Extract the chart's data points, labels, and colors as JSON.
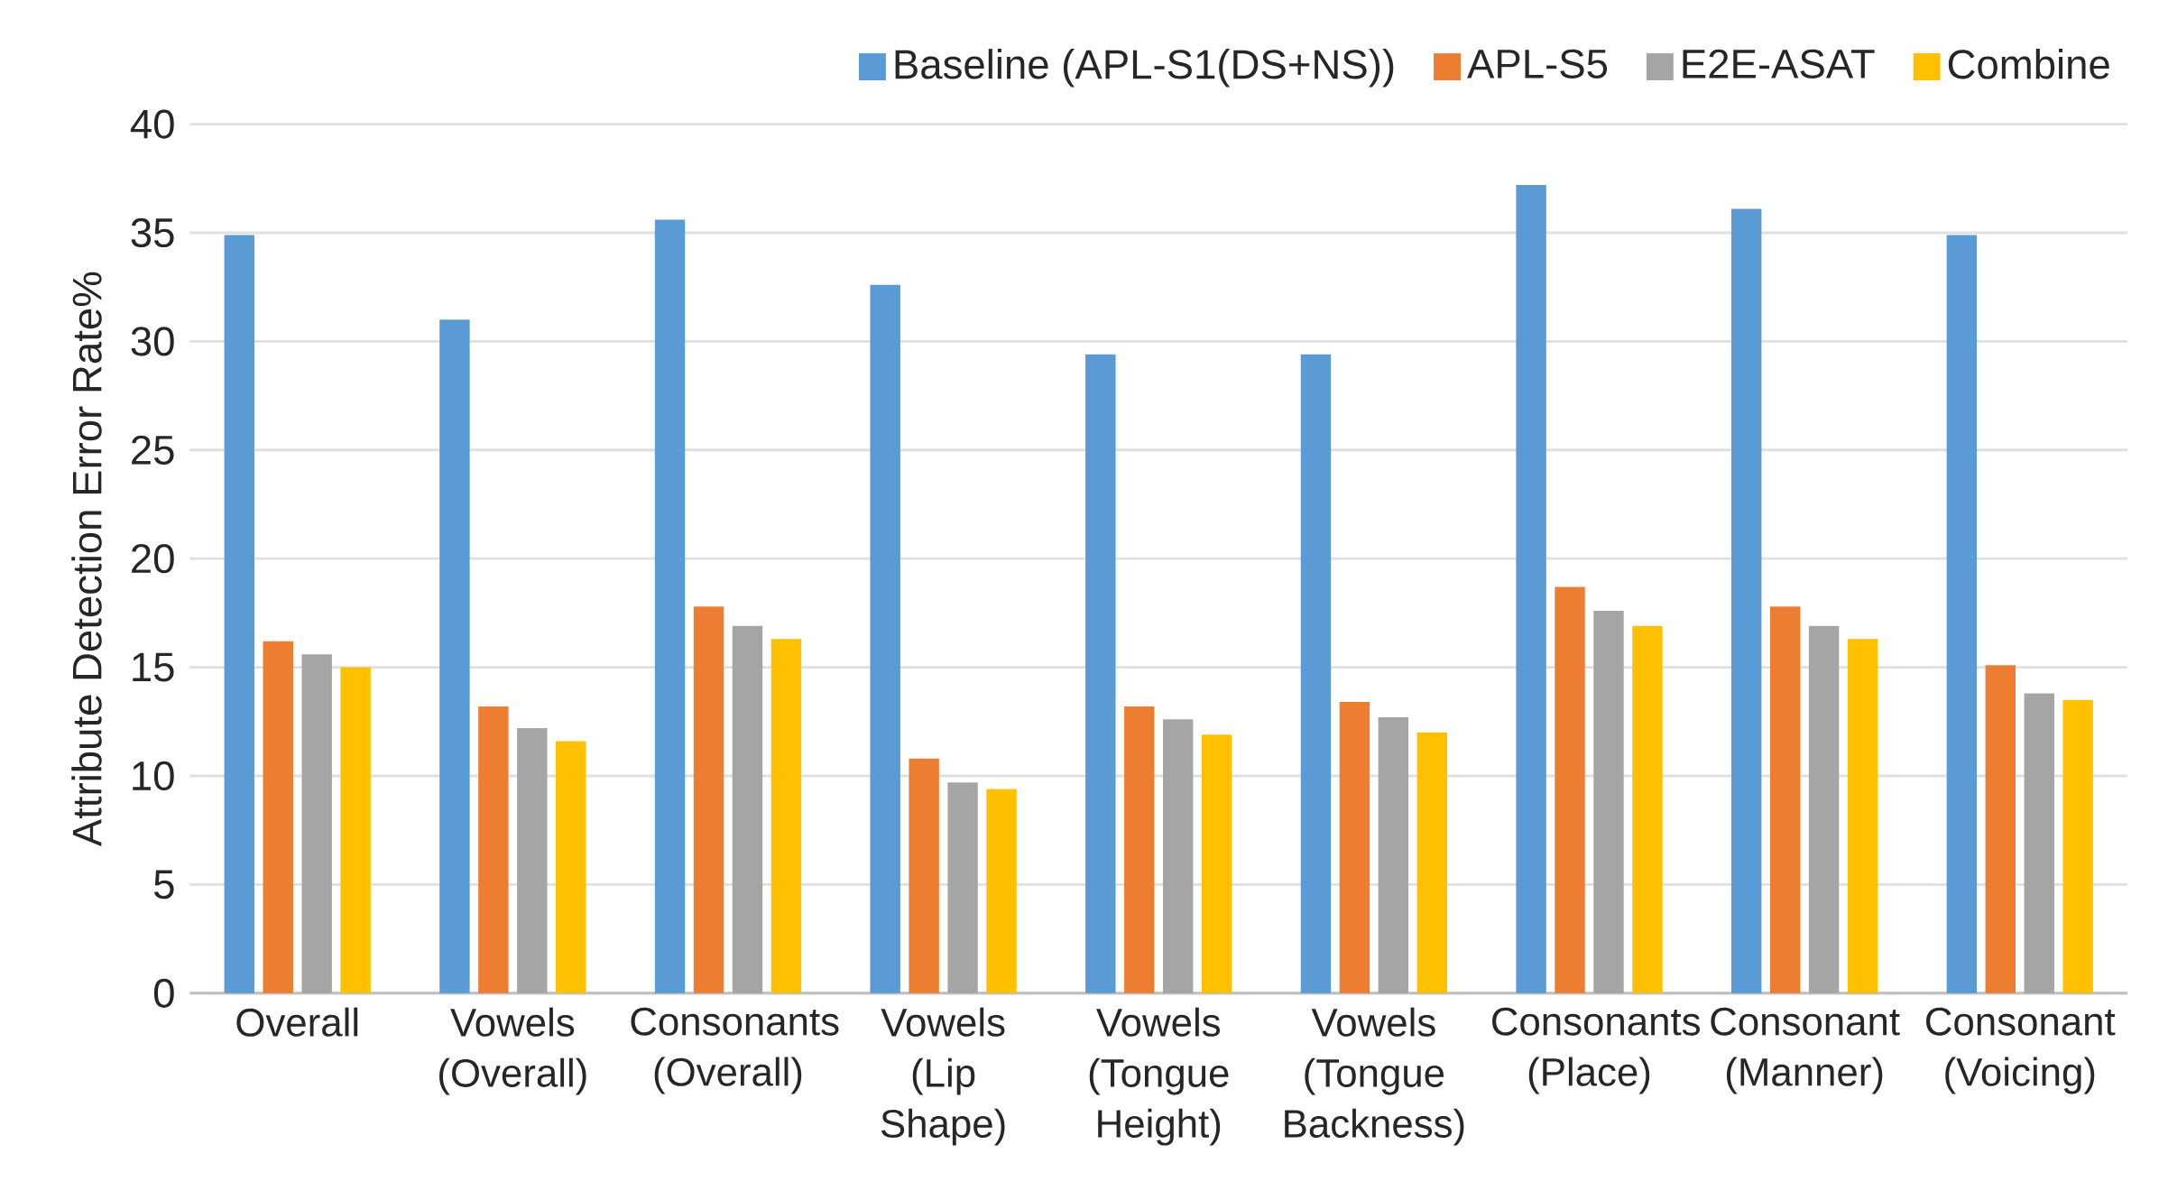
{
  "chart_data": {
    "type": "bar",
    "ylabel": "Attribute Detection Error Rate%",
    "categories": [
      "Overall",
      "Vowels (Overall)",
      "Consonants (Overall)",
      "Vowels (Lip Shape)",
      "Vowels (Tongue Height)",
      "Vowels (Tongue Backness)",
      "Consonants (Place)",
      "Consonant (Manner)",
      "Consonant (Voicing)"
    ],
    "series": [
      {
        "name": "Baseline (APL-S1(DS+NS))",
        "color": "#5b9bd5",
        "values": [
          34.9,
          31.0,
          35.6,
          32.6,
          29.4,
          29.4,
          37.2,
          36.1,
          34.9
        ]
      },
      {
        "name": "APL-S5",
        "color": "#ed7d31",
        "values": [
          16.2,
          13.2,
          17.8,
          10.8,
          13.2,
          13.4,
          18.7,
          17.8,
          15.1
        ]
      },
      {
        "name": "E2E-ASAT",
        "color": "#a5a5a5",
        "values": [
          15.6,
          12.2,
          16.9,
          9.7,
          12.6,
          12.7,
          17.6,
          16.9,
          13.8
        ]
      },
      {
        "name": "Combine",
        "color": "#ffc000",
        "values": [
          15.0,
          11.6,
          16.3,
          9.4,
          11.9,
          12.0,
          16.9,
          16.3,
          13.5
        ]
      }
    ],
    "ylim": [
      0,
      40
    ],
    "yticks": [
      0,
      5,
      10,
      15,
      20,
      25,
      30,
      35,
      40
    ],
    "grid": "y",
    "legend": "top right"
  }
}
